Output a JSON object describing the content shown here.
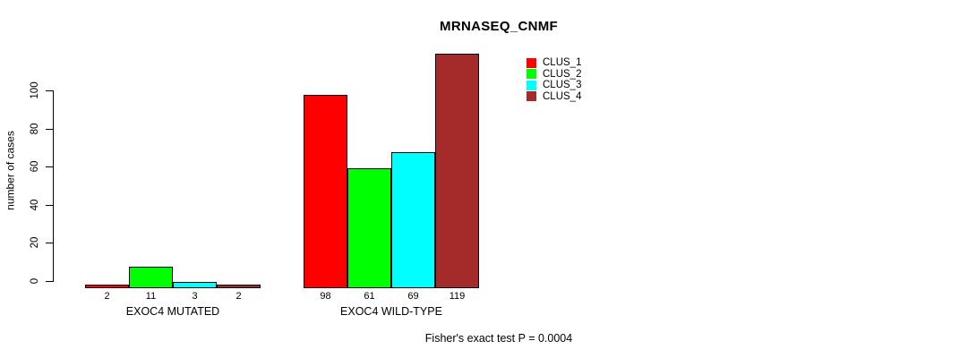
{
  "caption": "Fisher's exact test P = 0.0004",
  "chart_data": {
    "type": "bar",
    "title": "MRNASEQ_CNMF",
    "xlabel": "",
    "ylabel": "number of cases",
    "categories": [
      "EXOC4 MUTATED",
      "EXOC4 WILD-TYPE"
    ],
    "series": [
      {
        "name": "CLUS_1",
        "color": "#ff0000",
        "values": [
          2,
          98
        ]
      },
      {
        "name": "CLUS_2",
        "color": "#00ff00",
        "values": [
          11,
          61
        ]
      },
      {
        "name": "CLUS_3",
        "color": "#00ffff",
        "values": [
          3,
          69
        ]
      },
      {
        "name": "CLUS_4",
        "color": "#a52a2a",
        "values": [
          2,
          119
        ]
      }
    ],
    "yticks": [
      0,
      20,
      40,
      60,
      80,
      100
    ],
    "ylim": [
      0,
      100
    ],
    "grid": false,
    "show_value_labels": true,
    "bar_border_color": "#000000",
    "legend_position": "top-right"
  }
}
